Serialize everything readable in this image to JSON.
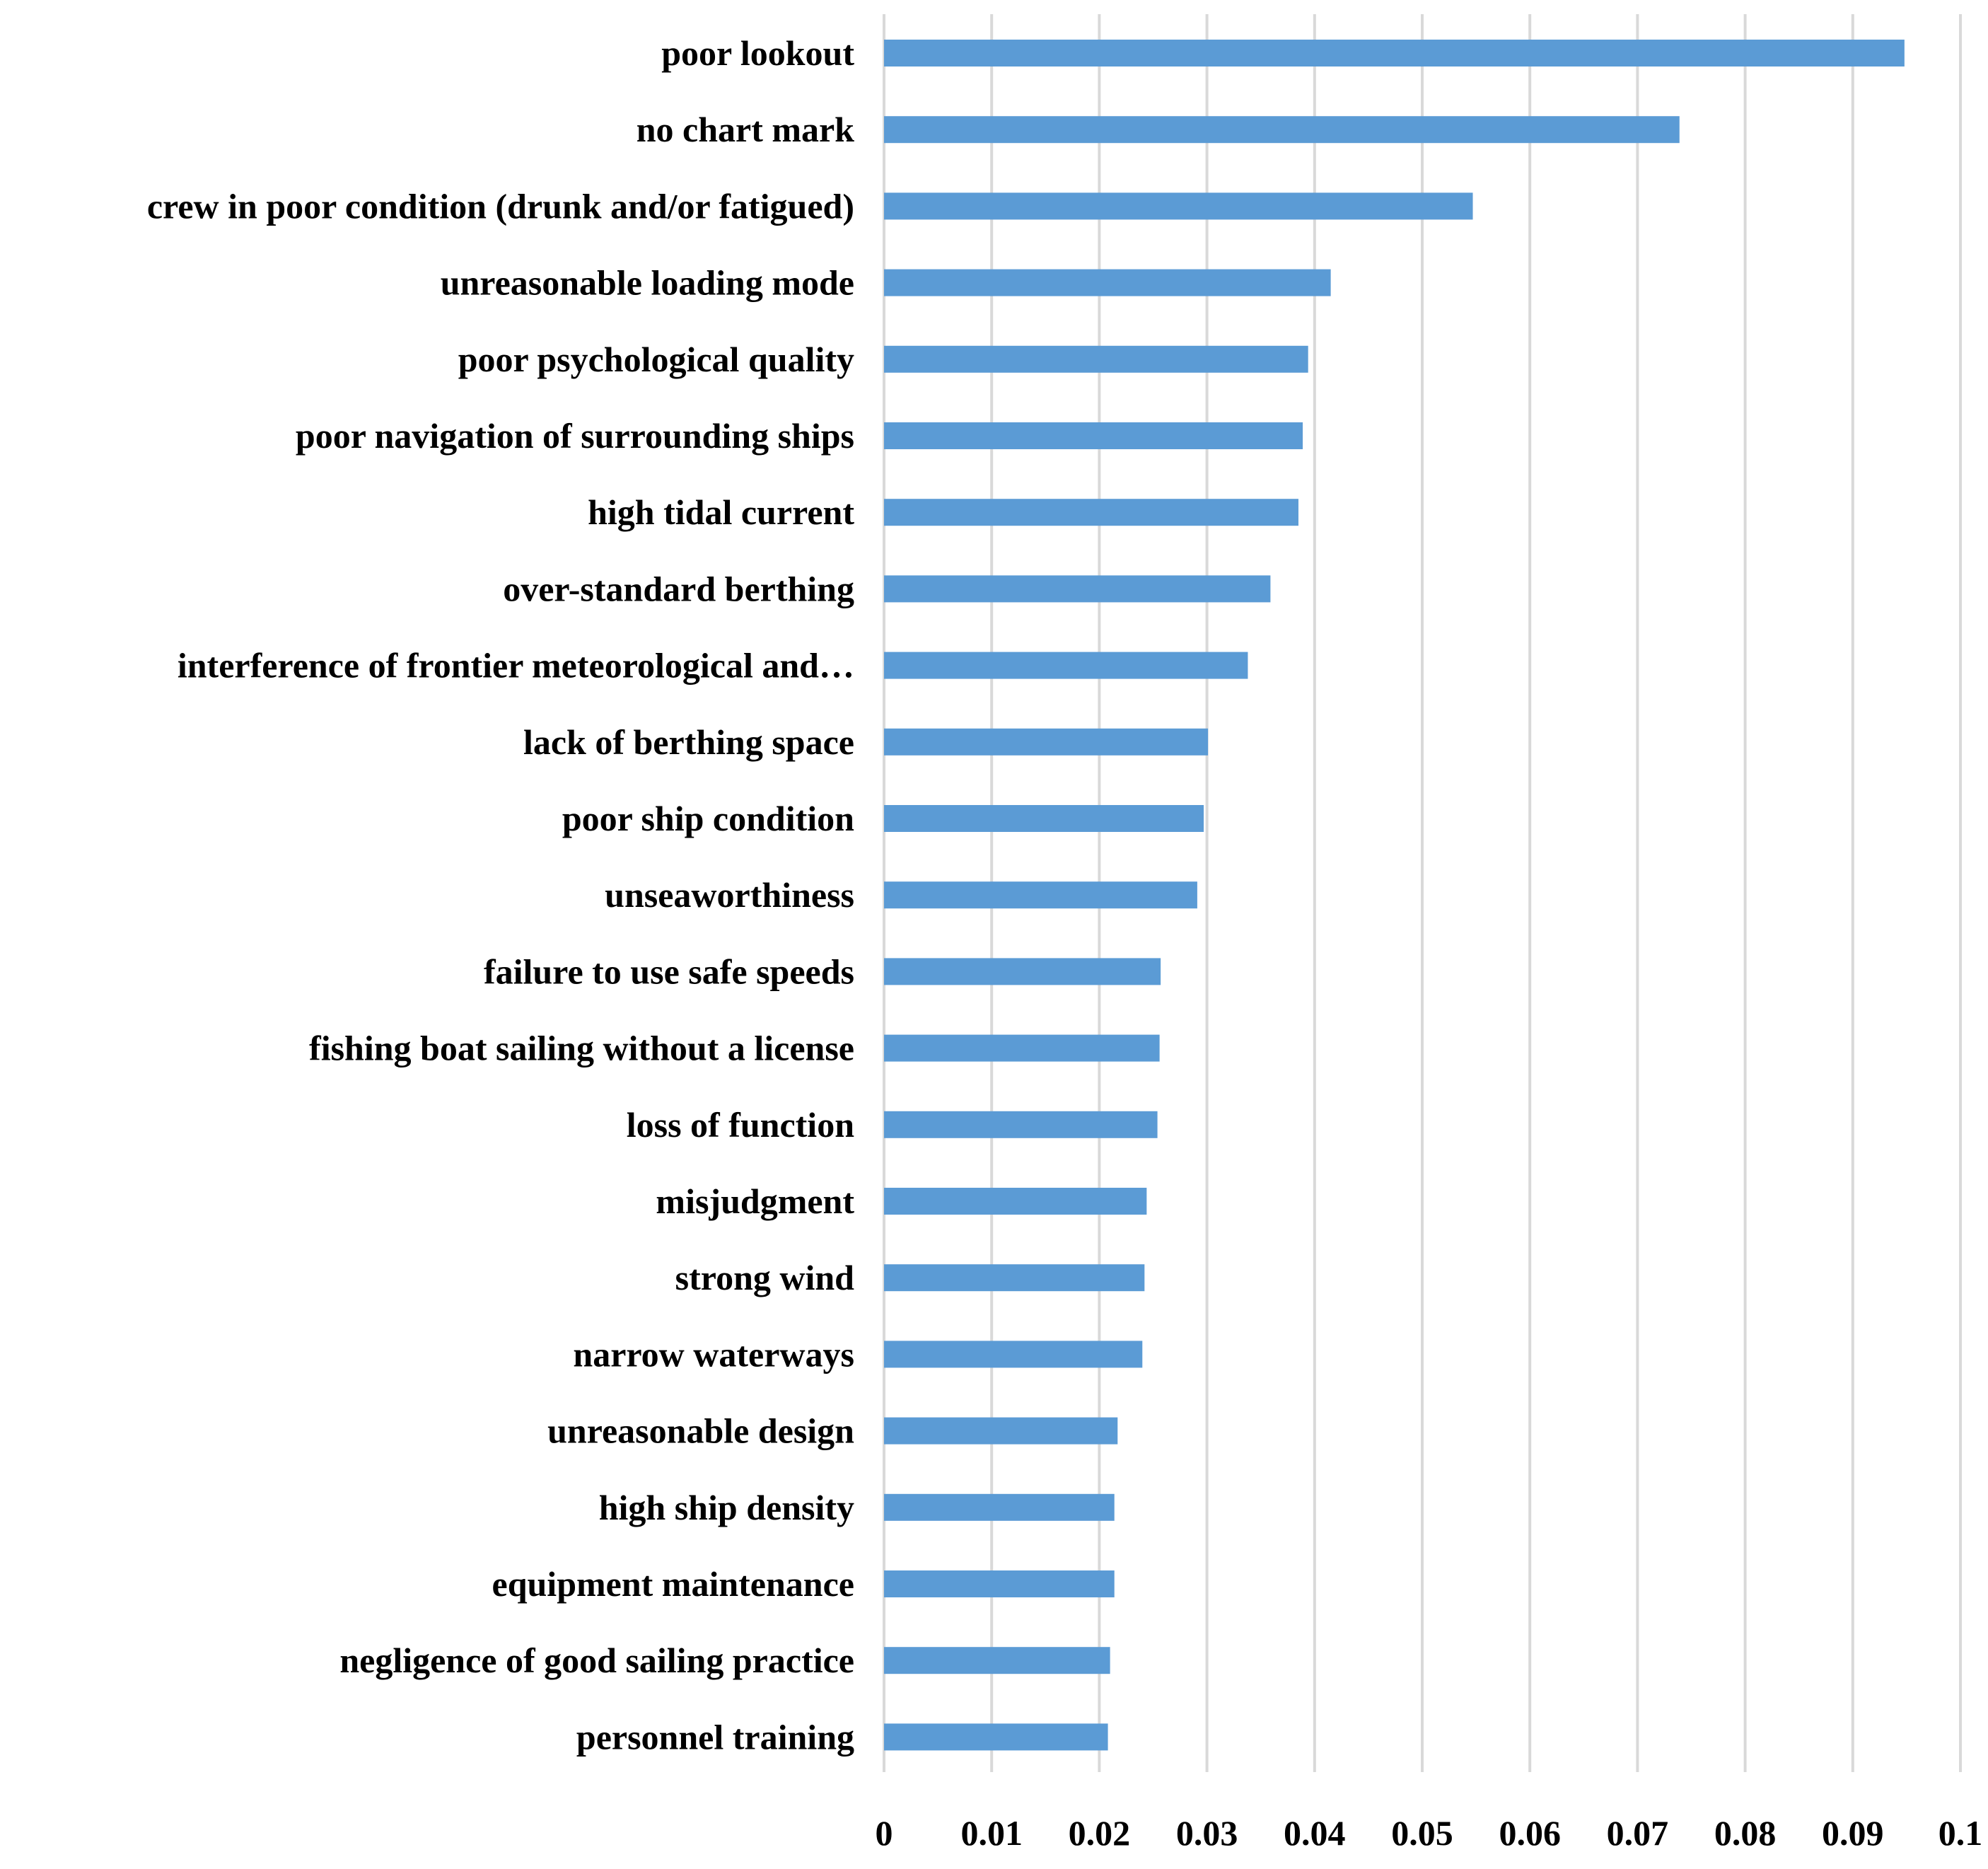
{
  "chart_data": {
    "type": "bar",
    "orientation": "horizontal",
    "title": "",
    "xlabel": "",
    "ylabel": "",
    "categories": [
      "poor lookout",
      "no chart mark",
      "crew in poor condition (drunk and/or fatigued)",
      "unreasonable loading mode",
      "poor psychological quality",
      "poor navigation of surrounding ships",
      "high tidal current",
      "over-standard berthing",
      "interference of frontier meteorological and…",
      "lack of berthing space",
      "poor ship condition",
      "unseaworthiness",
      "failure to use safe speeds",
      "fishing boat sailing without a license",
      "loss of function",
      "misjudgment",
      "strong wind",
      "narrow waterways",
      "unreasonable design",
      "high ship density",
      "equipment maintenance",
      "negligence of good sailing practice",
      "personnel training"
    ],
    "values": [
      0.0948,
      0.0739,
      0.0547,
      0.0415,
      0.0394,
      0.0389,
      0.0385,
      0.0359,
      0.0338,
      0.0301,
      0.0297,
      0.0291,
      0.0257,
      0.0256,
      0.0254,
      0.0244,
      0.0242,
      0.024,
      0.0217,
      0.0214,
      0.0214,
      0.021,
      0.0208
    ],
    "xlim": [
      0,
      0.1
    ],
    "xticks": [
      "0",
      "0.01",
      "0.02",
      "0.03",
      "0.04",
      "0.05",
      "0.06",
      "0.07",
      "0.08",
      "0.09",
      "0.1"
    ],
    "grid": true,
    "legend": "none",
    "bar_color": "#5B9BD5",
    "grid_color": "#D9D9D9"
  }
}
